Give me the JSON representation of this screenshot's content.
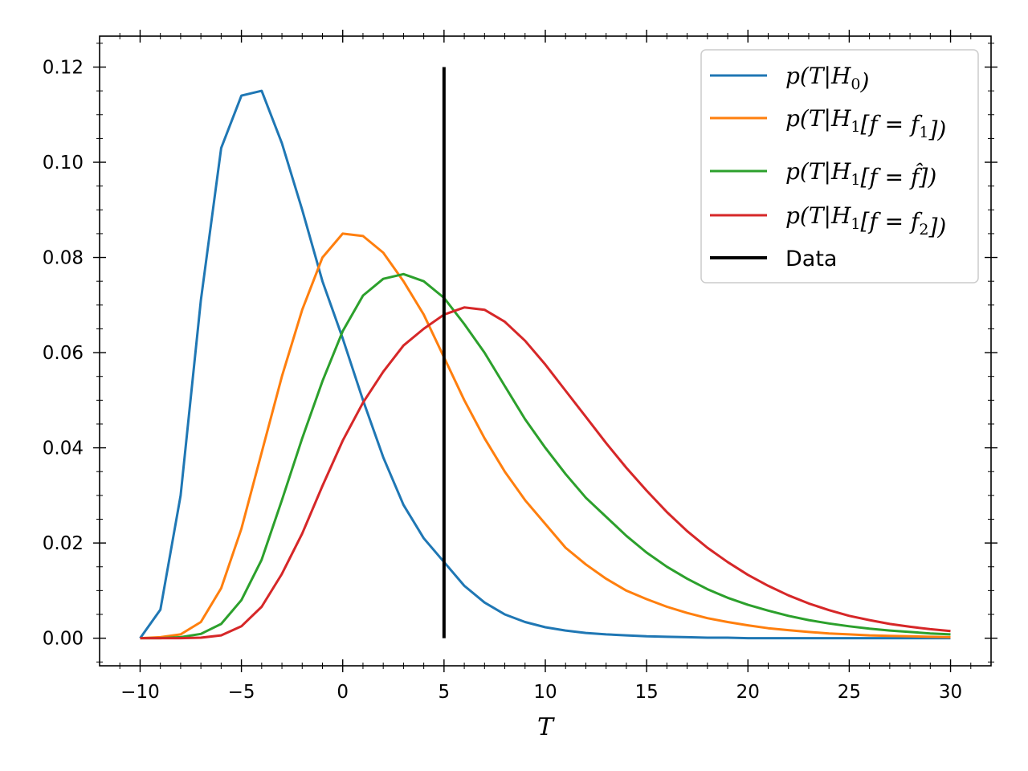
{
  "chart_data": {
    "type": "line",
    "title": "",
    "xlabel": "T",
    "ylabel": "",
    "xlim": [
      -12,
      32
    ],
    "ylim": [
      -0.0058,
      0.1265
    ],
    "xticks": [
      -10,
      -5,
      0,
      5,
      10,
      15,
      20,
      25,
      30
    ],
    "xtick_labels": [
      "−10",
      "−5",
      "0",
      "5",
      "10",
      "15",
      "20",
      "25",
      "30"
    ],
    "yticks": [
      0.0,
      0.02,
      0.04,
      0.06,
      0.08,
      0.1,
      0.12
    ],
    "ytick_labels": [
      "0.00",
      "0.02",
      "0.04",
      "0.06",
      "0.08",
      "0.10",
      "0.12"
    ],
    "grid": false,
    "legend_position": "top-right",
    "x": [
      -10,
      -9,
      -8,
      -7,
      -6,
      -5,
      -4,
      -3,
      -2,
      -1,
      0,
      1,
      2,
      3,
      4,
      5,
      6,
      7,
      8,
      9,
      10,
      11,
      12,
      13,
      14,
      15,
      16,
      17,
      18,
      19,
      20,
      21,
      22,
      23,
      24,
      25,
      26,
      27,
      28,
      29,
      30
    ],
    "series": [
      {
        "name": "p(T|H0)",
        "color": "#1f77b4",
        "values": [
          0.0,
          0.006,
          0.03,
          0.071,
          0.103,
          0.114,
          0.115,
          0.104,
          0.09,
          0.075,
          0.063,
          0.05,
          0.038,
          0.028,
          0.021,
          0.016,
          0.011,
          0.0075,
          0.005,
          0.0034,
          0.0023,
          0.0016,
          0.0011,
          0.0008,
          0.0006,
          0.0004,
          0.0003,
          0.0002,
          0.0001,
          0.0001,
          0.0,
          0.0,
          0.0,
          0.0,
          0.0,
          0.0,
          0.0,
          0.0,
          0.0,
          0.0,
          0.0
        ]
      },
      {
        "name": "p(T|H1[f=f1])",
        "color": "#ff7f0e",
        "values": [
          0.0,
          0.0002,
          0.0008,
          0.0034,
          0.0105,
          0.023,
          0.039,
          0.055,
          0.069,
          0.08,
          0.085,
          0.0845,
          0.081,
          0.075,
          0.068,
          0.059,
          0.05,
          0.042,
          0.035,
          0.029,
          0.024,
          0.019,
          0.0155,
          0.0125,
          0.01,
          0.0082,
          0.0066,
          0.0053,
          0.0042,
          0.0034,
          0.0027,
          0.0021,
          0.0017,
          0.0013,
          0.001,
          0.0008,
          0.0006,
          0.0005,
          0.0004,
          0.0003,
          0.0002
        ]
      },
      {
        "name": "p(T|H1[f=f̂])",
        "color": "#2ca02c",
        "values": [
          0.0,
          0.0,
          0.0002,
          0.0009,
          0.003,
          0.008,
          0.0165,
          0.029,
          0.042,
          0.054,
          0.0645,
          0.072,
          0.0755,
          0.0765,
          0.075,
          0.0715,
          0.066,
          0.06,
          0.053,
          0.046,
          0.04,
          0.0345,
          0.0295,
          0.0255,
          0.0215,
          0.018,
          0.015,
          0.0125,
          0.0103,
          0.0085,
          0.007,
          0.0058,
          0.0047,
          0.0038,
          0.0031,
          0.0025,
          0.002,
          0.0016,
          0.0013,
          0.001,
          0.0008
        ]
      },
      {
        "name": "p(T|H1[f=f2])",
        "color": "#d62728",
        "values": [
          0.0,
          0.0,
          0.0,
          0.0001,
          0.0006,
          0.0025,
          0.0066,
          0.0135,
          0.022,
          0.032,
          0.0415,
          0.0495,
          0.056,
          0.0615,
          0.065,
          0.068,
          0.0695,
          0.069,
          0.0665,
          0.0625,
          0.0575,
          0.052,
          0.0465,
          0.041,
          0.0358,
          0.031,
          0.0265,
          0.0225,
          0.019,
          0.016,
          0.0133,
          0.011,
          0.009,
          0.0073,
          0.0059,
          0.0047,
          0.0038,
          0.003,
          0.0024,
          0.0019,
          0.0015
        ]
      }
    ],
    "vlines": [
      {
        "name": "Data",
        "x": 5,
        "ymin": 0.0,
        "ymax": 0.12,
        "color": "#000000"
      }
    ]
  },
  "legend": {
    "entries": [
      {
        "label_main": "p(T|H",
        "sub": "0",
        "label_tail": ")",
        "color": "#1f77b4"
      },
      {
        "label_main": "p(T|H",
        "sub": "1",
        "mid": "[f = f",
        "sub2": "1",
        "label_tail": "])",
        "color": "#ff7f0e"
      },
      {
        "label_main": "p(T|H",
        "sub": "1",
        "mid": "[f = f̂",
        "label_tail": "])",
        "color": "#2ca02c"
      },
      {
        "label_main": "p(T|H",
        "sub": "1",
        "mid": "[f = f",
        "sub2": "2",
        "label_tail": "])",
        "color": "#d62728"
      },
      {
        "label": "Data",
        "color": "#000000"
      }
    ]
  }
}
